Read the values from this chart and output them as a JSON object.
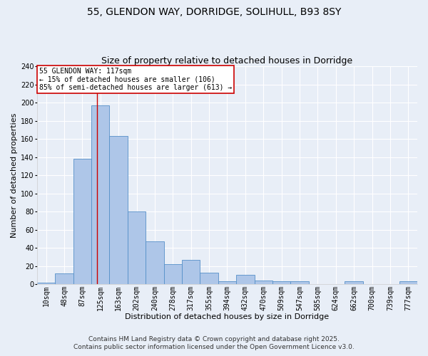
{
  "title_line1": "55, GLENDON WAY, DORRIDGE, SOLIHULL, B93 8SY",
  "title_line2": "Size of property relative to detached houses in Dorridge",
  "categories": [
    "10sqm",
    "48sqm",
    "87sqm",
    "125sqm",
    "163sqm",
    "202sqm",
    "240sqm",
    "278sqm",
    "317sqm",
    "355sqm",
    "394sqm",
    "432sqm",
    "470sqm",
    "509sqm",
    "547sqm",
    "585sqm",
    "624sqm",
    "662sqm",
    "700sqm",
    "739sqm",
    "777sqm"
  ],
  "values": [
    2,
    12,
    138,
    197,
    163,
    80,
    47,
    22,
    27,
    13,
    3,
    10,
    4,
    3,
    3,
    0,
    0,
    3,
    0,
    0,
    3
  ],
  "bar_color": "#aec6e8",
  "bar_edge_color": "#5590c8",
  "red_line_x": 2.82,
  "annotation_title": "55 GLENDON WAY: 117sqm",
  "annotation_line1": "← 15% of detached houses are smaller (106)",
  "annotation_line2": "85% of semi-detached houses are larger (613) →",
  "annotation_box_color": "#ffffff",
  "annotation_border_color": "#cc0000",
  "xlabel": "Distribution of detached houses by size in Dorridge",
  "ylabel": "Number of detached properties",
  "footer_line1": "Contains HM Land Registry data © Crown copyright and database right 2025.",
  "footer_line2": "Contains public sector information licensed under the Open Government Licence v3.0.",
  "ylim": [
    0,
    240
  ],
  "yticks": [
    0,
    20,
    40,
    60,
    80,
    100,
    120,
    140,
    160,
    180,
    200,
    220,
    240
  ],
  "background_color": "#e8eef7",
  "grid_color": "#ffffff",
  "title_fontsize": 10,
  "subtitle_fontsize": 9,
  "axis_label_fontsize": 8,
  "tick_fontsize": 7,
  "annotation_fontsize": 7,
  "footer_fontsize": 6.5
}
